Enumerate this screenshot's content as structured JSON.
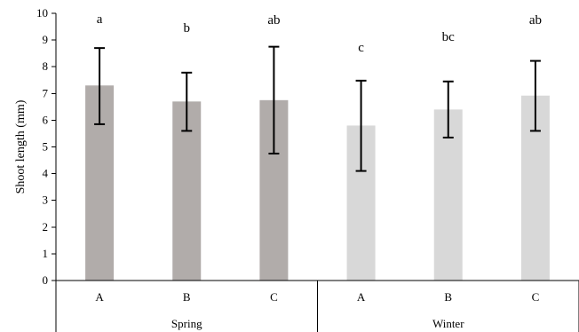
{
  "chart_data": {
    "type": "bar",
    "title": "",
    "xlabel": "",
    "ylabel": "Shoot length (mm)",
    "ylim": [
      0,
      10
    ],
    "y_ticks": [
      0,
      1,
      2,
      3,
      4,
      5,
      6,
      7,
      8,
      9,
      10
    ],
    "grid": false,
    "legend": "none",
    "groups": [
      {
        "label": "Spring",
        "color": "#b1acaa",
        "items": [
          {
            "category": "A",
            "value": 7.3,
            "error_low": 5.85,
            "error_high": 8.7,
            "annotation": "a"
          },
          {
            "category": "B",
            "value": 6.7,
            "error_low": 5.6,
            "error_high": 7.78,
            "annotation": "b"
          },
          {
            "category": "C",
            "value": 6.75,
            "error_low": 4.75,
            "error_high": 8.75,
            "annotation": "ab"
          }
        ]
      },
      {
        "label": "Winter",
        "color": "#d8d8d8",
        "items": [
          {
            "category": "A",
            "value": 5.8,
            "error_low": 4.1,
            "error_high": 7.48,
            "annotation": "c"
          },
          {
            "category": "B",
            "value": 6.4,
            "error_low": 5.35,
            "error_high": 7.45,
            "annotation": "bc"
          },
          {
            "category": "C",
            "value": 6.92,
            "error_low": 5.6,
            "error_high": 8.22,
            "annotation": "ab"
          }
        ]
      }
    ]
  }
}
